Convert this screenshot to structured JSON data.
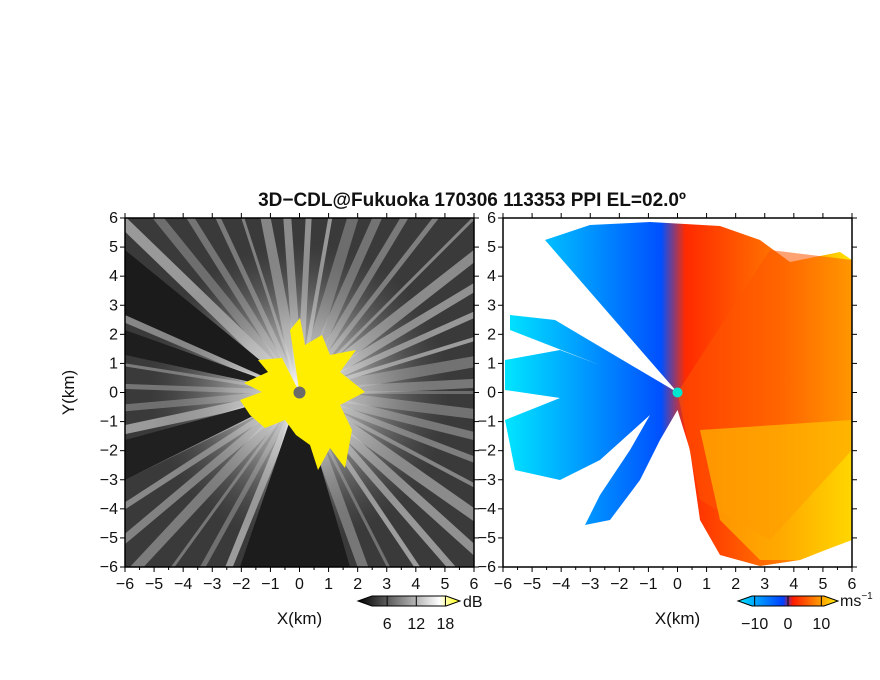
{
  "title": "3D−CDL@Fukuoka 170306 113353 PPI EL=02.0º",
  "chart_data": [
    {
      "type": "heatmap",
      "panel": "reflectivity",
      "xlabel": "X(km)",
      "ylabel": "Y(km)",
      "xlim": [
        -6,
        6
      ],
      "ylim": [
        -6,
        6
      ],
      "x_ticks": [
        "−6",
        "−5",
        "−4",
        "−3",
        "−2",
        "−1",
        "0",
        "1",
        "2",
        "3",
        "4",
        "5",
        "6"
      ],
      "y_ticks": [
        "6",
        "5",
        "4",
        "3",
        "2",
        "1",
        "0",
        "−1",
        "−2",
        "−3",
        "−4",
        "−5",
        "−6"
      ],
      "colorbar": {
        "unit": "dB",
        "ticks": [
          "6",
          "12",
          "18"
        ],
        "tick_values": [
          6,
          12,
          18
        ],
        "range": [
          0,
          21
        ],
        "colors": [
          "#000000",
          "#ffffff",
          "#ffff00"
        ]
      }
    },
    {
      "type": "heatmap",
      "panel": "doppler_velocity",
      "xlabel": "X(km)",
      "xlim": [
        -6,
        6
      ],
      "ylim": [
        -6,
        6
      ],
      "x_ticks": [
        "−6",
        "−5",
        "−4",
        "−3",
        "−2",
        "−1",
        "0",
        "1",
        "2",
        "3",
        "4",
        "5",
        "6"
      ],
      "y_ticks": [
        "6",
        "5",
        "4",
        "3",
        "2",
        "1",
        "0",
        "−1",
        "−2",
        "−3",
        "−4",
        "−5",
        "−6"
      ],
      "colorbar": {
        "unit": "ms",
        "unit_exp": "−1",
        "ticks": [
          "−10",
          "0",
          "10"
        ],
        "tick_values": [
          -10,
          0,
          10
        ],
        "range": [
          -15,
          15
        ],
        "colors": [
          "#00e5ff",
          "#0044ff",
          "#ff1a00",
          "#ffee00"
        ]
      }
    }
  ]
}
